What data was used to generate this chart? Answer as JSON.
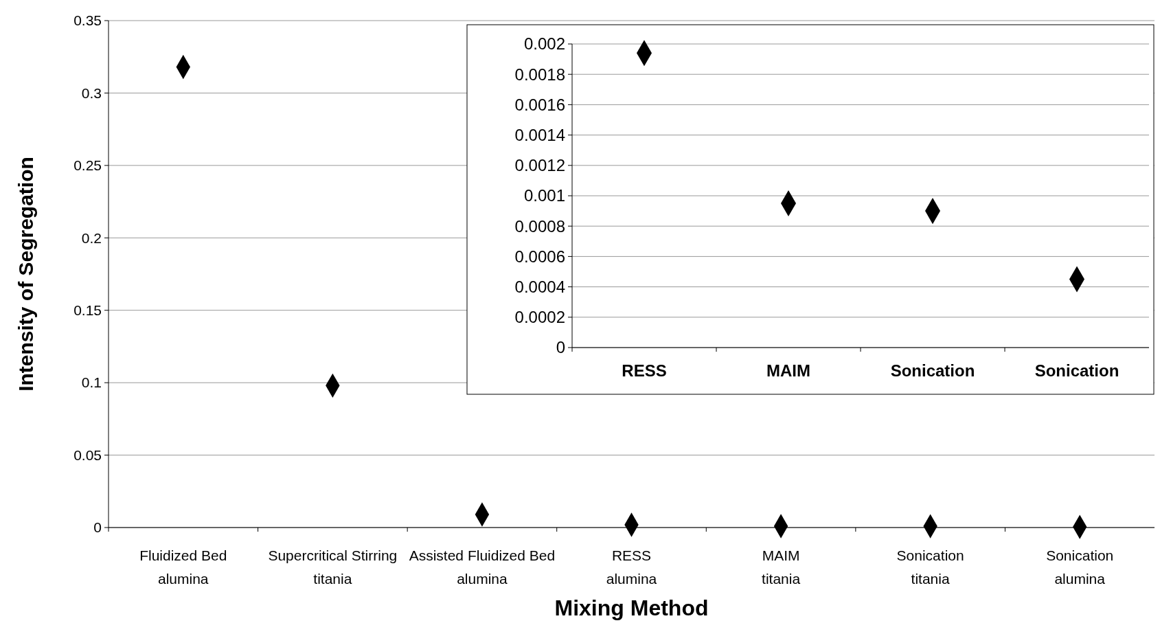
{
  "chart_data": [
    {
      "type": "scatter",
      "xlabel": "Mixing Method",
      "ylabel": "Intensity of Segregation",
      "categories": [
        "Fluidized Bed\nalumina",
        "Supercritical Stirring\ntitania",
        "Assisted Fluidized Bed\nalumina",
        "RESS\nalumina",
        "MAIM\ntitania",
        "Sonication\ntitania",
        "Sonication\nalumina"
      ],
      "series": [
        {
          "color": "#000000",
          "values": [
            0.318,
            0.098,
            0.009,
            0.0019,
            0.00095,
            0.0009,
            0.00045
          ]
        }
      ],
      "ylim": [
        0,
        0.35
      ],
      "yticks": [
        0,
        0.05,
        0.1,
        0.15,
        0.2,
        0.25,
        0.3,
        0.35
      ],
      "grid": "y",
      "marker": "diamond"
    },
    {
      "type": "scatter",
      "categories": [
        "RESS",
        "MAIM",
        "Sonication",
        "Sonication"
      ],
      "series": [
        {
          "color": "#000000",
          "values": [
            0.00194,
            0.00095,
            0.0009,
            0.00045
          ]
        }
      ],
      "ylim": [
        0,
        0.002
      ],
      "yticks": [
        0,
        0.0002,
        0.0004,
        0.0006,
        0.0008,
        0.001,
        0.0012,
        0.0014,
        0.0016,
        0.0018,
        0.002
      ],
      "grid": "y",
      "marker": "diamond"
    }
  ]
}
